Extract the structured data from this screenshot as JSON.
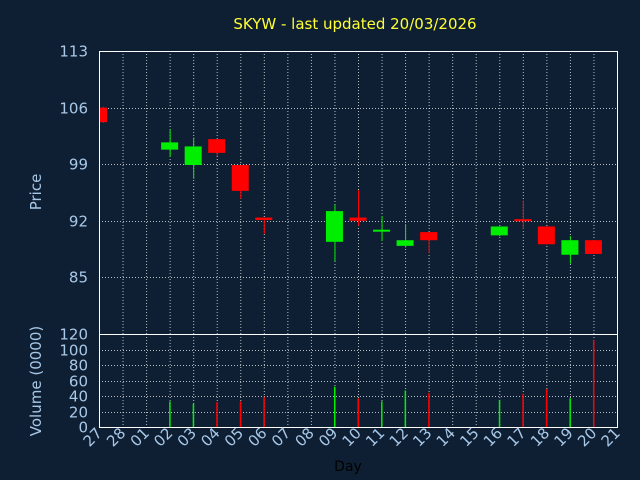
{
  "chart_data": {
    "type": "candlestick",
    "title": "SKYW - last updated 20/03/2026",
    "xlabel": "Day",
    "price_panel": {
      "ylabel": "Price",
      "ylim": [
        78,
        113
      ],
      "yticks": [
        85,
        92,
        99,
        106,
        113
      ]
    },
    "volume_panel": {
      "ylabel": "Volume (0000)",
      "ylim": [
        0,
        120
      ],
      "yticks": [
        0,
        20,
        40,
        60,
        80,
        100,
        120
      ]
    },
    "x_tick_labels": [
      "27",
      "28",
      "01",
      "02",
      "03",
      "04",
      "05",
      "06",
      "07",
      "08",
      "09",
      "10",
      "11",
      "12",
      "13",
      "14",
      "15",
      "16",
      "17",
      "18",
      "19",
      "20",
      "21"
    ],
    "candles": [
      {
        "day": "27",
        "open": 106.0,
        "high": 106.1,
        "low": 104.1,
        "close": 104.2,
        "volume": 0
      },
      {
        "day": "02",
        "open": 100.8,
        "high": 103.3,
        "low": 99.9,
        "close": 101.7,
        "volume": 33
      },
      {
        "day": "03",
        "open": 98.9,
        "high": 102.3,
        "low": 97.2,
        "close": 101.2,
        "volume": 30
      },
      {
        "day": "04",
        "open": 102.1,
        "high": 102.1,
        "low": 100.0,
        "close": 100.4,
        "volume": 32
      },
      {
        "day": "05",
        "open": 98.9,
        "high": 98.9,
        "low": 94.7,
        "close": 95.7,
        "volume": 33
      },
      {
        "day": "06",
        "open": 92.4,
        "high": 92.4,
        "low": 90.4,
        "close": 92.1,
        "volume": 39
      },
      {
        "day": "09",
        "open": 89.4,
        "high": 94.0,
        "low": 87.0,
        "close": 93.2,
        "volume": 52
      },
      {
        "day": "10",
        "open": 92.4,
        "high": 95.8,
        "low": 91.4,
        "close": 92.0,
        "volume": 37
      },
      {
        "day": "11",
        "open": 90.8,
        "high": 92.6,
        "low": 89.5,
        "close": 90.9,
        "volume": 33
      },
      {
        "day": "12",
        "open": 88.9,
        "high": 91.6,
        "low": 88.7,
        "close": 89.6,
        "volume": 47
      },
      {
        "day": "13",
        "open": 90.6,
        "high": 90.6,
        "low": 88.0,
        "close": 89.6,
        "volume": 44
      },
      {
        "day": "16",
        "open": 90.2,
        "high": 91.3,
        "low": 90.1,
        "close": 91.3,
        "volume": 35
      },
      {
        "day": "17",
        "open": 92.2,
        "high": 94.5,
        "low": 91.0,
        "close": 92.0,
        "volume": 43
      },
      {
        "day": "18",
        "open": 91.3,
        "high": 91.3,
        "low": 89.1,
        "close": 89.1,
        "volume": 49
      },
      {
        "day": "19",
        "open": 87.8,
        "high": 90.1,
        "low": 86.7,
        "close": 89.6,
        "volume": 37
      },
      {
        "day": "20",
        "open": 89.6,
        "high": 89.6,
        "low": 87.9,
        "close": 87.9,
        "volume": 112
      }
    ],
    "colors": {
      "background": "#0f1f33",
      "plot_background": "#0f1f33",
      "frame": "#ffffff",
      "grid": "#ffffff",
      "up": "#00ee00",
      "down": "#ff0000",
      "title": "#ffff33",
      "axis_text": "#a8c8e8",
      "xlabel": "#000000"
    },
    "grid": true,
    "legend": "none"
  }
}
